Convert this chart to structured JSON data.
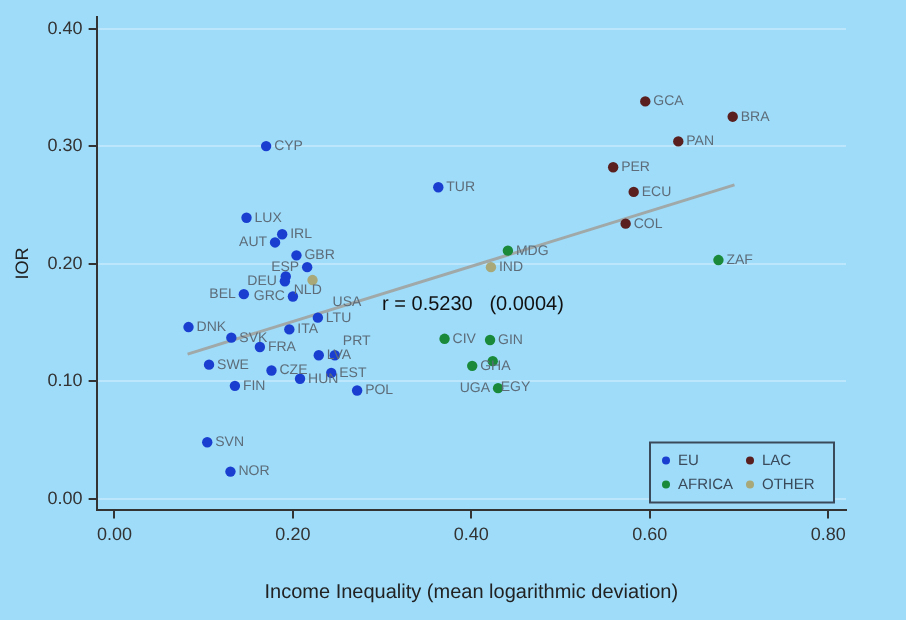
{
  "chart_data": {
    "type": "scatter",
    "xlabel": "Income Inequality (mean logarithmic deviation)",
    "ylabel": "IOR",
    "xlim": [
      -0.02,
      0.82
    ],
    "xticks": [
      {
        "value": 0,
        "label": "0.00"
      },
      {
        "value": 0.2,
        "label": "0.20"
      },
      {
        "value": 0.4,
        "label": "0.40"
      },
      {
        "value": 0.6,
        "label": "0.60"
      },
      {
        "value": 0.8,
        "label": "0.80"
      }
    ],
    "ylim": [
      -0.01,
      0.41
    ],
    "yticks": [
      {
        "value": 0,
        "label": "0.00"
      },
      {
        "value": 0.1,
        "label": "0.10"
      },
      {
        "value": 0.2,
        "label": "0.20"
      },
      {
        "value": 0.3,
        "label": "0.30"
      },
      {
        "value": 0.4,
        "label": "0.40"
      }
    ],
    "grid": "y",
    "legend": "bottom right",
    "marker": "circle",
    "series": [
      {
        "name": "EU",
        "color": "#1a3fd0",
        "x": [
          0.17,
          0.148,
          0.188,
          0.18,
          0.204,
          0.216,
          0.192,
          0.191,
          0.145,
          0.2,
          0.228,
          0.083,
          0.196,
          0.131,
          0.163,
          0.229,
          0.247,
          0.106,
          0.176,
          0.243,
          0.208,
          0.135,
          0.272,
          0.104,
          0.13,
          0.363
        ],
        "values": [
          0.3,
          0.239,
          0.225,
          0.218,
          0.207,
          0.197,
          0.189,
          0.185,
          0.174,
          0.172,
          0.154,
          0.146,
          0.144,
          0.137,
          0.129,
          0.122,
          0.122,
          0.114,
          0.109,
          0.107,
          0.102,
          0.096,
          0.092,
          0.048,
          0.023,
          0.265
        ]
      },
      {
        "name": "LAC",
        "color": "#5a1f1f",
        "x": [
          0.595,
          0.693,
          0.632,
          0.559,
          0.582,
          0.573
        ],
        "values": [
          0.338,
          0.325,
          0.304,
          0.282,
          0.261,
          0.234
        ]
      },
      {
        "name": "AFRICA",
        "color": "#1a8a3a",
        "x": [
          0.441,
          0.677,
          0.37,
          0.421,
          0.401,
          0.424,
          0.43
        ],
        "values": [
          0.211,
          0.203,
          0.136,
          0.135,
          0.113,
          0.117,
          0.094
        ]
      },
      {
        "name": "OTHER",
        "color": "#a8a878",
        "x": [
          0.422,
          0.222
        ],
        "values": [
          0.197,
          0.186
        ]
      },
      {
        "type": "line",
        "color": "#a0a8a8",
        "marker": "none",
        "x": [
          0.082,
          0.695
        ],
        "values": [
          0.123,
          0.267
        ]
      }
    ],
    "annotations": [
      "r = 0.5230   (0.0004)",
      {
        "text": "CYP",
        "x": 0.17,
        "y": 0.3
      },
      {
        "text": "LUX",
        "x": 0.148,
        "y": 0.239
      },
      {
        "text": "IRL",
        "x": 0.188,
        "y": 0.225
      },
      {
        "text": "AUT",
        "x": 0.18,
        "y": 0.218
      },
      {
        "text": "GBR",
        "x": 0.204,
        "y": 0.207
      },
      {
        "text": "ESP",
        "x": 0.216,
        "y": 0.197
      },
      {
        "text": "NLD",
        "x": 0.192,
        "y": 0.189
      },
      {
        "text": "DEU",
        "x": 0.191,
        "y": 0.185
      },
      {
        "text": "BEL",
        "x": 0.145,
        "y": 0.174
      },
      {
        "text": "GRC",
        "x": 0.2,
        "y": 0.172
      },
      {
        "text": "LTU",
        "x": 0.228,
        "y": 0.154
      },
      {
        "text": "DNK",
        "x": 0.083,
        "y": 0.146
      },
      {
        "text": "ITA",
        "x": 0.196,
        "y": 0.144
      },
      {
        "text": "SVK",
        "x": 0.131,
        "y": 0.137
      },
      {
        "text": "FRA",
        "x": 0.163,
        "y": 0.129
      },
      {
        "text": "LVA",
        "x": 0.229,
        "y": 0.122
      },
      {
        "text": "PRT",
        "x": 0.247,
        "y": 0.122
      },
      {
        "text": "SWE",
        "x": 0.106,
        "y": 0.114
      },
      {
        "text": "CZE",
        "x": 0.176,
        "y": 0.109
      },
      {
        "text": "EST",
        "x": 0.243,
        "y": 0.107
      },
      {
        "text": "HUN",
        "x": 0.208,
        "y": 0.102
      },
      {
        "text": "FIN",
        "x": 0.135,
        "y": 0.096
      },
      {
        "text": "POL",
        "x": 0.272,
        "y": 0.092
      },
      {
        "text": "SVN",
        "x": 0.104,
        "y": 0.048
      },
      {
        "text": "NOR",
        "x": 0.13,
        "y": 0.023
      },
      {
        "text": "TUR",
        "x": 0.363,
        "y": 0.265
      },
      {
        "text": "GCA",
        "x": 0.595,
        "y": 0.338
      },
      {
        "text": "BRA",
        "x": 0.693,
        "y": 0.325
      },
      {
        "text": "PAN",
        "x": 0.632,
        "y": 0.304
      },
      {
        "text": "PER",
        "x": 0.559,
        "y": 0.282
      },
      {
        "text": "ECU",
        "x": 0.582,
        "y": 0.261
      },
      {
        "text": "COL",
        "x": 0.573,
        "y": 0.234
      },
      {
        "text": "MDG",
        "x": 0.441,
        "y": 0.211
      },
      {
        "text": "ZAF",
        "x": 0.677,
        "y": 0.203
      },
      {
        "text": "CIV",
        "x": 0.37,
        "y": 0.136
      },
      {
        "text": "GIN",
        "x": 0.421,
        "y": 0.135
      },
      {
        "text": "GHA",
        "x": 0.401,
        "y": 0.113
      },
      {
        "text": "EGY",
        "x": 0.424,
        "y": 0.117
      },
      {
        "text": "UGA",
        "x": 0.43,
        "y": 0.094
      },
      {
        "text": "IND",
        "x": 0.422,
        "y": 0.197
      },
      {
        "text": "USA",
        "x": 0.222,
        "y": 0.186
      }
    ]
  }
}
